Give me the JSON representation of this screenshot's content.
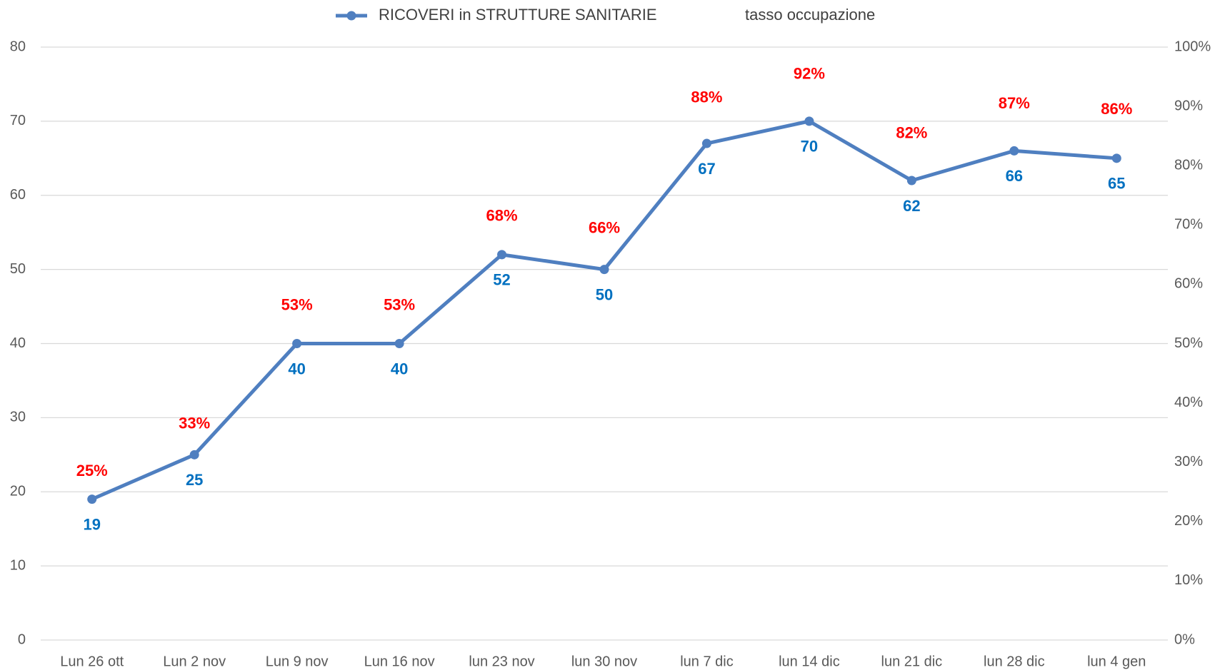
{
  "chart_data": {
    "type": "line",
    "categories": [
      "Lun 26 ott",
      "Lun 2 nov",
      "Lun 9 nov",
      "Lun 16 nov",
      "lun 23 nov",
      "lun 30 nov",
      "lun 7 dic",
      "lun 14 dic",
      "lun 21 dic",
      "lun 28 dic",
      "lun 4 gen"
    ],
    "series": [
      {
        "name": "RICOVERI in STRUTTURE SANITARIE",
        "color": "#4f7fc0",
        "label_color": "#0070c0",
        "values": [
          19,
          25,
          40,
          40,
          52,
          50,
          67,
          70,
          62,
          66,
          65
        ]
      },
      {
        "name": "tasso occupazione",
        "axis": "y2",
        "label_color": "#ff0000",
        "values": [
          25,
          33,
          53,
          53,
          68,
          66,
          88,
          92,
          82,
          87,
          86
        ],
        "value_labels": [
          "25%",
          "33%",
          "53%",
          "53%",
          "68%",
          "66%",
          "88%",
          "92%",
          "82%",
          "87%",
          "86%"
        ]
      }
    ],
    "ylim": [
      0,
      80
    ],
    "yticks": [
      0,
      10,
      20,
      30,
      40,
      50,
      60,
      70,
      80
    ],
    "y2lim": [
      0,
      100
    ],
    "y2ticks": [
      {
        "value": 0,
        "label": "0%"
      },
      {
        "value": 10,
        "label": "10%"
      },
      {
        "value": 20,
        "label": "20%"
      },
      {
        "value": 30,
        "label": "30%"
      },
      {
        "value": 40,
        "label": "40%"
      },
      {
        "value": 50,
        "label": "50%"
      },
      {
        "value": 60,
        "label": "60%"
      },
      {
        "value": 70,
        "label": "70%"
      },
      {
        "value": 80,
        "label": "80%"
      },
      {
        "value": 90,
        "label": "90%"
      },
      {
        "value": 100,
        "label": "100%"
      }
    ],
    "grid": true
  }
}
